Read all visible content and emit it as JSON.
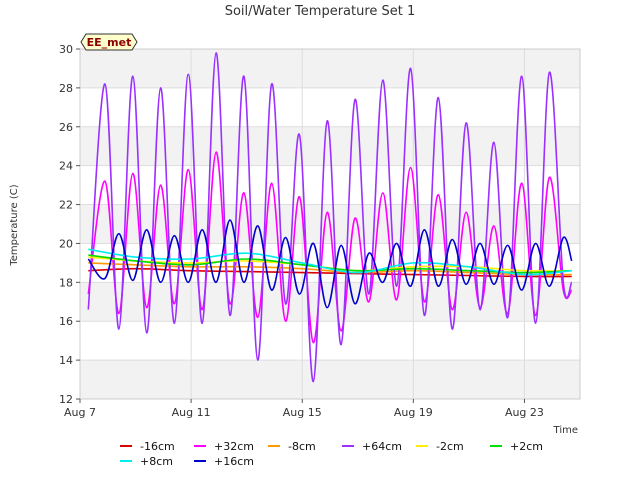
{
  "chart_data": {
    "type": "line",
    "title": "Soil/Water Temperature Set 1",
    "xlabel": "Time",
    "ylabel": "Temperature (C)",
    "badge": "EE_met",
    "ylim": [
      12,
      30
    ],
    "xlim": [
      "Aug 7",
      "Aug 25"
    ],
    "y_ticks": [
      "12",
      "14",
      "16",
      "18",
      "20",
      "22",
      "24",
      "26",
      "28",
      "30"
    ],
    "x_ticks": [
      {
        "label": "Aug 7",
        "day": 7
      },
      {
        "label": "Aug 11",
        "day": 11
      },
      {
        "label": "Aug 15",
        "day": 15
      },
      {
        "label": "Aug 19",
        "day": 19
      },
      {
        "label": "Aug 23",
        "day": 23
      }
    ],
    "grid": true,
    "legend_position": "bottom",
    "series": [
      {
        "name": "-16cm",
        "color": "#dd0000",
        "x": [
          "Aug 7.3",
          "Aug 9",
          "Aug 11",
          "Aug 13",
          "Aug 15",
          "Aug 17",
          "Aug 19",
          "Aug 21",
          "Aug 23",
          "Aug 24.7"
        ],
        "y": [
          18.6,
          18.7,
          18.6,
          18.55,
          18.5,
          18.45,
          18.4,
          18.35,
          18.3,
          18.3
        ]
      },
      {
        "name": "+32cm",
        "color": "#ff00ff",
        "x": [
          "Aug 7.3",
          "Aug 7.9",
          "Aug 8.4",
          "Aug 8.9",
          "Aug 9.4",
          "Aug 9.9",
          "Aug 10.4",
          "Aug 10.9",
          "Aug 11.4",
          "Aug 11.9",
          "Aug 12.4",
          "Aug 12.9",
          "Aug 13.4",
          "Aug 13.9",
          "Aug 14.4",
          "Aug 14.9",
          "Aug 15.4",
          "Aug 15.9",
          "Aug 16.4",
          "Aug 16.9",
          "Aug 17.4",
          "Aug 17.9",
          "Aug 18.4",
          "Aug 18.9",
          "Aug 19.4",
          "Aug 19.9",
          "Aug 20.4",
          "Aug 20.9",
          "Aug 21.4",
          "Aug 21.9",
          "Aug 22.4",
          "Aug 22.9",
          "Aug 23.4",
          "Aug 23.9",
          "Aug 24.4",
          "Aug 24.7"
        ],
        "y": [
          17.4,
          23.2,
          16.4,
          23.6,
          16.7,
          23.0,
          16.9,
          23.8,
          16.6,
          24.7,
          16.9,
          22.6,
          16.2,
          23.1,
          16.0,
          22.4,
          14.9,
          21.6,
          15.5,
          21.3,
          17.0,
          22.6,
          17.1,
          23.9,
          17.0,
          22.5,
          16.6,
          21.6,
          16.7,
          20.9,
          16.4,
          23.1,
          16.3,
          23.4,
          17.6,
          17.6
        ]
      },
      {
        "name": "-8cm",
        "color": "#ff9900",
        "x": [
          "Aug 7.3",
          "Aug 9",
          "Aug 11",
          "Aug 13",
          "Aug 15",
          "Aug 17",
          "Aug 19",
          "Aug 21",
          "Aug 23",
          "Aug 24.7"
        ],
        "y": [
          19.0,
          18.9,
          18.8,
          18.8,
          18.7,
          18.5,
          18.6,
          18.5,
          18.4,
          18.4
        ]
      },
      {
        "name": "+64cm",
        "color": "#9b30ff",
        "x": [
          "Aug 7.3",
          "Aug 7.9",
          "Aug 8.4",
          "Aug 8.9",
          "Aug 9.4",
          "Aug 9.9",
          "Aug 10.4",
          "Aug 10.9",
          "Aug 11.4",
          "Aug 11.9",
          "Aug 12.4",
          "Aug 12.9",
          "Aug 13.4",
          "Aug 13.9",
          "Aug 14.4",
          "Aug 14.9",
          "Aug 15.4",
          "Aug 15.9",
          "Aug 16.4",
          "Aug 16.9",
          "Aug 17.4",
          "Aug 17.9",
          "Aug 18.4",
          "Aug 18.9",
          "Aug 19.4",
          "Aug 19.9",
          "Aug 20.4",
          "Aug 20.9",
          "Aug 21.4",
          "Aug 21.9",
          "Aug 22.4",
          "Aug 22.9",
          "Aug 23.4",
          "Aug 23.9",
          "Aug 24.4",
          "Aug 24.7"
        ],
        "y": [
          16.6,
          28.2,
          15.6,
          28.6,
          15.4,
          28.0,
          15.9,
          28.7,
          15.9,
          29.8,
          16.3,
          28.6,
          14.0,
          28.2,
          16.9,
          25.6,
          12.9,
          26.3,
          14.8,
          27.4,
          17.4,
          28.4,
          17.8,
          29.0,
          16.3,
          27.5,
          15.6,
          26.2,
          16.6,
          25.2,
          16.2,
          28.6,
          15.9,
          28.8,
          18.0,
          18.0
        ]
      },
      {
        "name": "-2cm",
        "color": "#ffee00",
        "x": [
          "Aug 7.3",
          "Aug 9",
          "Aug 11",
          "Aug 13",
          "Aug 15",
          "Aug 17",
          "Aug 19",
          "Aug 21",
          "Aug 23",
          "Aug 24.7"
        ],
        "y": [
          19.3,
          19.1,
          19.0,
          19.1,
          18.9,
          18.6,
          18.8,
          18.8,
          18.6,
          18.6
        ]
      },
      {
        "name": "+2cm",
        "color": "#00dd00",
        "x": [
          "Aug 7.3",
          "Aug 9",
          "Aug 11",
          "Aug 13",
          "Aug 15",
          "Aug 17",
          "Aug 19",
          "Aug 21",
          "Aug 23",
          "Aug 24.7"
        ],
        "y": [
          19.4,
          19.1,
          18.9,
          19.2,
          18.9,
          18.6,
          18.7,
          18.6,
          18.5,
          18.6
        ]
      },
      {
        "name": "+8cm",
        "color": "#00eeee",
        "x": [
          "Aug 7.3",
          "Aug 9",
          "Aug 11",
          "Aug 13",
          "Aug 15",
          "Aug 17",
          "Aug 19",
          "Aug 21",
          "Aug 23",
          "Aug 24.7"
        ],
        "y": [
          19.7,
          19.3,
          19.2,
          19.5,
          19.0,
          18.5,
          19.0,
          18.8,
          18.4,
          18.6
        ]
      },
      {
        "name": "+16cm",
        "color": "#0000cc",
        "x": [
          "Aug 7.3",
          "Aug 7.9",
          "Aug 8.4",
          "Aug 8.9",
          "Aug 9.4",
          "Aug 9.9",
          "Aug 10.4",
          "Aug 10.9",
          "Aug 11.4",
          "Aug 11.9",
          "Aug 12.4",
          "Aug 12.9",
          "Aug 13.4",
          "Aug 13.9",
          "Aug 14.4",
          "Aug 14.9",
          "Aug 15.4",
          "Aug 15.9",
          "Aug 16.4",
          "Aug 16.9",
          "Aug 17.4",
          "Aug 17.9",
          "Aug 18.4",
          "Aug 18.9",
          "Aug 19.4",
          "Aug 19.9",
          "Aug 20.4",
          "Aug 20.9",
          "Aug 21.4",
          "Aug 21.9",
          "Aug 22.4",
          "Aug 22.9",
          "Aug 23.4",
          "Aug 23.9",
          "Aug 24.4",
          "Aug 24.7"
        ],
        "y": [
          19.2,
          18.2,
          20.5,
          18.1,
          20.7,
          18.0,
          20.4,
          18.0,
          20.7,
          18.0,
          21.2,
          18.0,
          20.9,
          17.6,
          20.3,
          17.4,
          20.0,
          16.7,
          19.9,
          16.9,
          19.5,
          18.0,
          20.0,
          17.8,
          20.7,
          17.8,
          20.2,
          17.9,
          20.0,
          17.9,
          19.9,
          17.6,
          20.0,
          17.8,
          20.3,
          19.1
        ]
      }
    ]
  }
}
